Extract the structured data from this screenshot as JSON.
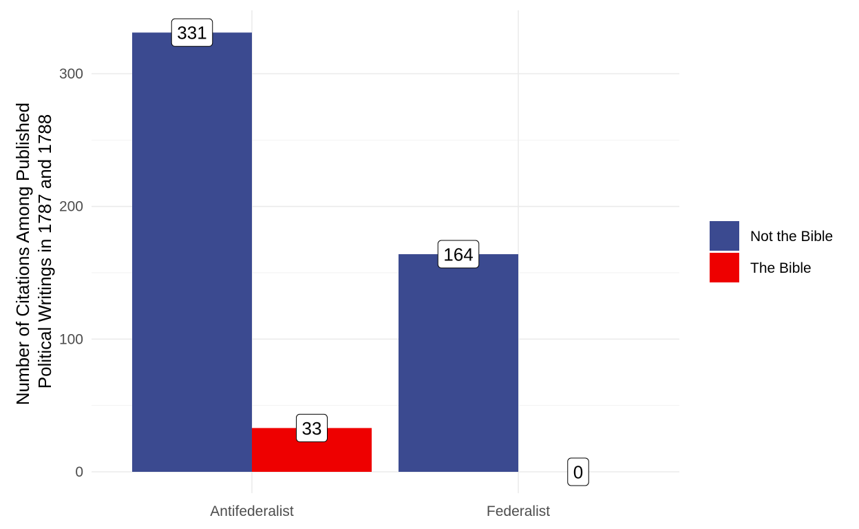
{
  "chart_data": {
    "type": "bar",
    "categories": [
      "Antifederalist",
      "Federalist"
    ],
    "series": [
      {
        "name": "Not the Bible",
        "color": "#3b4a90",
        "values": [
          331,
          164
        ]
      },
      {
        "name": "The Bible",
        "color": "#ee0000",
        "values": [
          33,
          0
        ]
      }
    ],
    "xlabel": "",
    "ylabel_lines": [
      "Number of Citations Among Published",
      "Political Writings in 1787 and 1788"
    ],
    "ylim": [
      0,
      347
    ],
    "yticks": [
      0,
      100,
      200,
      300
    ],
    "grid": true,
    "legend": "right",
    "data_labels": true
  }
}
